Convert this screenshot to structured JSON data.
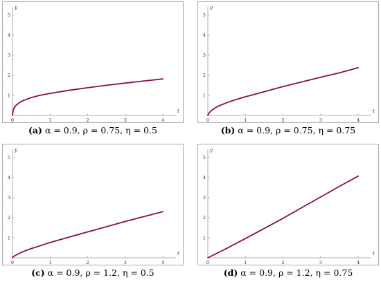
{
  "chart_data": [
    {
      "type": "line",
      "panel_label": "(a)",
      "caption": "α = 0.9, ρ = 0.75, η = 0.5",
      "xlabel": "t",
      "ylabel": "y",
      "xlim": [
        0,
        4.2
      ],
      "ylim": [
        0,
        5.2
      ],
      "xticks": [
        0,
        1,
        2,
        3,
        4
      ],
      "yticks": [
        1,
        2,
        3,
        4,
        5
      ],
      "grid": false,
      "color": "#8b0a50",
      "series": [
        {
          "x": [
            0,
            0.02,
            0.05,
            0.1,
            0.2,
            0.3,
            0.5,
            0.7,
            1.0,
            1.5,
            2.0,
            2.5,
            3.0,
            3.5,
            4.0
          ],
          "y": [
            0,
            0.26,
            0.39,
            0.51,
            0.66,
            0.75,
            0.89,
            0.99,
            1.1,
            1.25,
            1.38,
            1.5,
            1.61,
            1.72,
            1.82
          ]
        }
      ]
    },
    {
      "type": "line",
      "panel_label": "(b)",
      "caption": "α = 0.9, ρ = 0.75, η = 0.75",
      "xlabel": "t",
      "ylabel": "y",
      "xlim": [
        0,
        4.2
      ],
      "ylim": [
        0,
        5.2
      ],
      "xticks": [
        0,
        1,
        2,
        3,
        4
      ],
      "yticks": [
        1,
        2,
        3,
        4,
        5
      ],
      "grid": false,
      "color": "#8b0a50",
      "series": [
        {
          "x": [
            0,
            0.02,
            0.05,
            0.1,
            0.2,
            0.3,
            0.5,
            0.7,
            1.0,
            1.5,
            2.0,
            2.5,
            3.0,
            3.5,
            4.0
          ],
          "y": [
            0,
            0.09,
            0.16,
            0.25,
            0.38,
            0.48,
            0.63,
            0.76,
            0.93,
            1.18,
            1.44,
            1.67,
            1.9,
            2.12,
            2.38
          ]
        }
      ]
    },
    {
      "type": "line",
      "panel_label": "(c)",
      "caption": "α = 0.9, ρ = 1.2, η = 0.5",
      "xlabel": "t",
      "ylabel": "y",
      "xlim": [
        0,
        4.2
      ],
      "ylim": [
        0,
        5.2
      ],
      "xticks": [
        0,
        1,
        2,
        3,
        4
      ],
      "yticks": [
        1,
        2,
        3,
        4,
        5
      ],
      "grid": false,
      "color": "#8b0a50",
      "series": [
        {
          "x": [
            0,
            0.02,
            0.05,
            0.1,
            0.2,
            0.3,
            0.5,
            0.7,
            1.0,
            1.5,
            2.0,
            2.5,
            3.0,
            3.5,
            4.0
          ],
          "y": [
            0,
            0.05,
            0.09,
            0.14,
            0.24,
            0.32,
            0.46,
            0.58,
            0.76,
            1.03,
            1.29,
            1.55,
            1.81,
            2.06,
            2.3
          ]
        }
      ]
    },
    {
      "type": "line",
      "panel_label": "(d)",
      "caption": "α = 0.9, ρ = 1.2, η = 0.75",
      "xlabel": "t",
      "ylabel": "y",
      "xlim": [
        0,
        4.2
      ],
      "ylim": [
        0,
        5.2
      ],
      "xticks": [
        0,
        1,
        2,
        3,
        4
      ],
      "yticks": [
        1,
        2,
        3,
        4,
        5
      ],
      "grid": false,
      "color": "#8b0a50",
      "series": [
        {
          "x": [
            0,
            0.5,
            1.0,
            1.5,
            2.0,
            2.5,
            3.0,
            3.5,
            4.0
          ],
          "y": [
            0,
            0.47,
            0.96,
            1.46,
            1.97,
            2.5,
            3.03,
            3.56,
            4.07
          ]
        }
      ]
    }
  ]
}
